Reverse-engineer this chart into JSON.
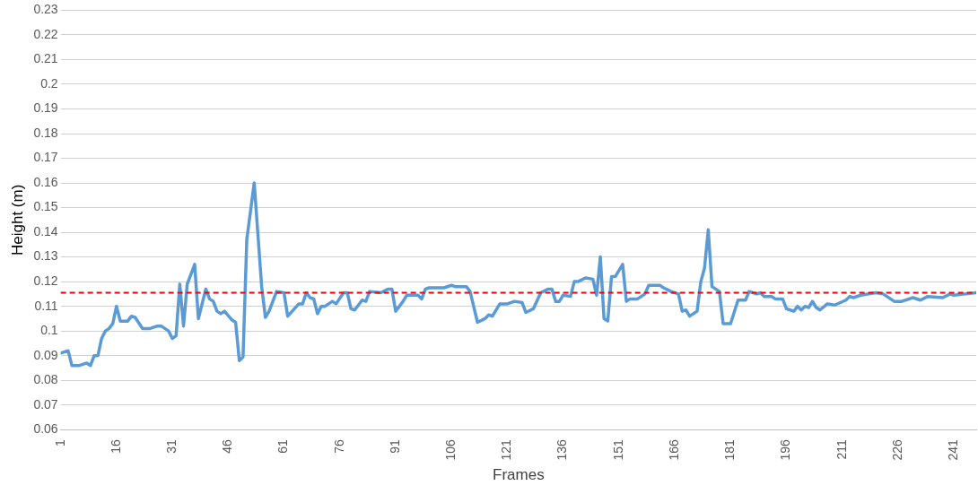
{
  "chart_data": {
    "type": "line",
    "xlabel": "Frames",
    "ylabel": "Height (m)",
    "xlim": [
      1,
      247
    ],
    "xticks": [
      1,
      16,
      31,
      46,
      61,
      76,
      91,
      106,
      121,
      136,
      151,
      166,
      181,
      196,
      211,
      226,
      241
    ],
    "ylim": [
      0.06,
      0.23
    ],
    "yticks": [
      0.06,
      0.07,
      0.08,
      0.09,
      0.1,
      0.11,
      0.12,
      0.13,
      0.14,
      0.15,
      0.16,
      0.17,
      0.18,
      0.19,
      0.2,
      0.21,
      0.22,
      0.23
    ],
    "grid": "y",
    "marker": "none",
    "line_style": "solid",
    "ref_lines": [
      {
        "axis": "y",
        "value": 0.1155,
        "color": "#ff0000",
        "line_style": "dashed"
      }
    ],
    "series": [
      {
        "color": "#5b9bd5",
        "x": [
          1,
          3,
          4,
          6,
          8,
          9,
          10,
          11,
          12,
          13,
          14,
          15,
          16,
          17,
          19,
          20,
          21,
          23,
          25,
          27,
          28,
          30,
          31,
          32,
          33,
          34,
          35,
          37,
          38,
          40,
          41,
          42,
          43,
          44,
          45,
          47,
          48,
          49,
          50,
          51,
          53,
          55,
          56,
          57,
          59,
          61,
          62,
          65,
          66,
          67,
          68,
          69,
          70,
          71,
          72,
          74,
          75,
          77,
          78,
          79,
          80,
          82,
          83,
          84,
          87,
          89,
          90,
          91,
          93,
          94,
          97,
          98,
          99,
          100,
          104,
          106,
          107,
          110,
          111,
          113,
          115,
          116,
          117,
          119,
          121,
          123,
          125,
          126,
          128,
          130,
          132,
          133,
          134,
          135,
          136,
          138,
          139,
          140,
          142,
          144,
          145,
          146,
          147,
          148,
          149,
          150,
          152,
          153,
          154,
          156,
          158,
          159,
          162,
          163,
          165,
          167,
          168,
          169,
          170,
          172,
          173,
          174,
          175,
          176,
          178,
          179,
          180,
          181,
          183,
          185,
          186,
          188,
          189,
          190,
          192,
          193,
          195,
          196,
          197,
          198,
          199,
          200,
          201,
          202,
          203,
          204,
          205,
          207,
          209,
          212,
          213,
          214,
          216,
          220,
          222,
          224,
          225,
          227,
          230,
          232,
          234,
          238,
          240,
          241,
          244,
          247
        ],
        "values": [
          0.091,
          0.092,
          0.086,
          0.086,
          0.087,
          0.086,
          0.09,
          0.09,
          0.097,
          0.1,
          0.101,
          0.103,
          0.11,
          0.104,
          0.104,
          0.106,
          0.1055,
          0.101,
          0.101,
          0.102,
          0.102,
          0.1,
          0.097,
          0.098,
          0.119,
          0.102,
          0.119,
          0.127,
          0.105,
          0.117,
          0.113,
          0.112,
          0.108,
          0.107,
          0.108,
          0.1045,
          0.1035,
          0.088,
          0.0895,
          0.137,
          0.16,
          0.118,
          0.1055,
          0.108,
          0.116,
          0.1155,
          0.106,
          0.111,
          0.111,
          0.1155,
          0.1135,
          0.113,
          0.107,
          0.11,
          0.11,
          0.112,
          0.111,
          0.1155,
          0.1155,
          0.109,
          0.1085,
          0.1125,
          0.112,
          0.116,
          0.1155,
          0.117,
          0.117,
          0.108,
          0.112,
          0.1145,
          0.1145,
          0.113,
          0.117,
          0.1175,
          0.1175,
          0.1185,
          0.118,
          0.118,
          0.116,
          0.1035,
          0.105,
          0.1065,
          0.106,
          0.111,
          0.111,
          0.112,
          0.1115,
          0.1075,
          0.109,
          0.1155,
          0.117,
          0.117,
          0.112,
          0.112,
          0.1145,
          0.114,
          0.12,
          0.12,
          0.1215,
          0.121,
          0.1145,
          0.13,
          0.105,
          0.104,
          0.122,
          0.122,
          0.127,
          0.112,
          0.113,
          0.113,
          0.115,
          0.1185,
          0.1185,
          0.1175,
          0.116,
          0.115,
          0.108,
          0.1085,
          0.106,
          0.108,
          0.12,
          0.1255,
          0.141,
          0.118,
          0.116,
          0.103,
          0.103,
          0.103,
          0.1125,
          0.1125,
          0.116,
          0.115,
          0.1155,
          0.114,
          0.114,
          0.113,
          0.113,
          0.109,
          0.1085,
          0.108,
          0.11,
          0.1085,
          0.11,
          0.1095,
          0.112,
          0.1095,
          0.1085,
          0.111,
          0.1105,
          0.1125,
          0.114,
          0.1135,
          0.1145,
          0.1155,
          0.115,
          0.113,
          0.112,
          0.112,
          0.1135,
          0.1125,
          0.114,
          0.1135,
          0.115,
          0.1145,
          0.115,
          0.1155
        ]
      }
    ]
  }
}
